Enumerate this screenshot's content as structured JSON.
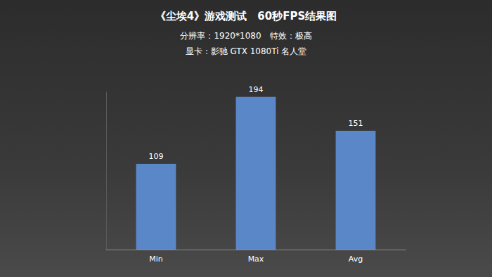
{
  "chart_data": {
    "type": "bar",
    "title": "《尘埃4》游戏测试　60秒FPS结果图",
    "subtitle": [
      "分辨率：1920*1080　特效：极高",
      "显卡：影驰 GTX 1080Ti 名人堂"
    ],
    "categories": [
      "Min",
      "Max",
      "Avg"
    ],
    "values": [
      109,
      194,
      151
    ],
    "color": "#5a87c8",
    "ylim": [
      0,
      200
    ],
    "grid": false,
    "data_labels": true,
    "tick_labels": "x"
  }
}
